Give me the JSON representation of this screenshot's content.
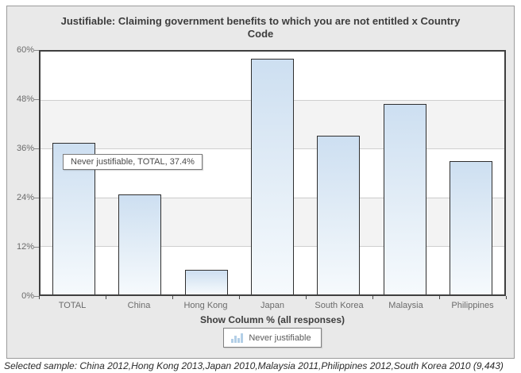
{
  "chart_data": {
    "type": "bar",
    "title": "Justifiable: Claiming government benefits to which you are not entitled x Country Code",
    "categories": [
      "TOTAL",
      "China",
      "Hong Kong",
      "Japan",
      "South Korea",
      "Malaysia",
      "Philippines"
    ],
    "series": [
      {
        "name": "Never justifiable",
        "values": [
          37.4,
          24.8,
          6.0,
          58.3,
          39.2,
          47.0,
          33.0
        ]
      }
    ],
    "xlabel": "Show Column % (all responses)",
    "ylabel": "",
    "ylim": [
      0,
      60
    ],
    "yticks": [
      "0%",
      "12%",
      "24%",
      "36%",
      "48%",
      "60%"
    ],
    "ytick_values": [
      0,
      12,
      24,
      36,
      48,
      60
    ],
    "grid": true,
    "legend_position": "bottom",
    "bar_border_color": "#2f2f2f",
    "bar_fill_top": "#cddff1",
    "bar_fill_bottom": "#f6fafd",
    "plot_band_color": "#f3f3f3",
    "plot_background": "#ffffff"
  },
  "tooltip": {
    "text": "Never justifiable, TOTAL, 37.4%"
  },
  "legend": {
    "label": "Never justifiable"
  },
  "footer": {
    "note": "Selected sample: China 2012,Hong Kong 2013,Japan 2010,Malaysia 2011,Philippines 2012,South Korea 2010 (9,443)"
  }
}
